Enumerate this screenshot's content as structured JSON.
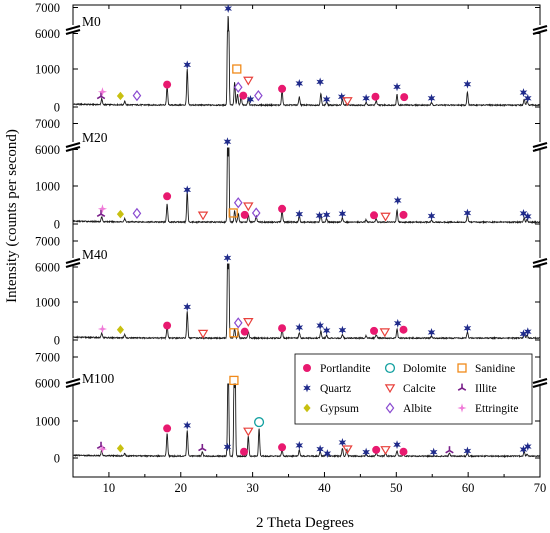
{
  "chart_data": {
    "type": "line",
    "xlabel": "2 Theta Degrees",
    "ylabel": "Intensity (counts per second)",
    "xlim": [
      5,
      70
    ],
    "x_ticks": [
      "10",
      "20",
      "30",
      "40",
      "50",
      "60",
      "70"
    ],
    "y_ticks": [
      "0",
      "1000",
      "6000",
      "7000"
    ],
    "axis_break": [
      2000,
      5500
    ],
    "panels": [
      {
        "label": "M0",
        "peaks": [
          [
            9.0,
            150
          ],
          [
            12.2,
            90
          ],
          [
            18.1,
            480
          ],
          [
            20.9,
            950
          ],
          [
            26.6,
            6800
          ],
          [
            27.5,
            600
          ],
          [
            27.9,
            300
          ],
          [
            28.4,
            250
          ],
          [
            29.4,
            180
          ],
          [
            34.1,
            380
          ],
          [
            36.5,
            220
          ],
          [
            39.5,
            300
          ],
          [
            40.3,
            100
          ],
          [
            42.5,
            150
          ],
          [
            45.8,
            80
          ],
          [
            47.2,
            120
          ],
          [
            50.1,
            280
          ],
          [
            54.9,
            60
          ],
          [
            59.9,
            350
          ],
          [
            67.8,
            150
          ],
          [
            68.2,
            100
          ]
        ],
        "markers": [
          {
            "mineral": "Illite",
            "x": 8.9,
            "y": 280
          },
          {
            "mineral": "Ettringite",
            "x": 9.1,
            "y": 400
          },
          {
            "mineral": "Gypsum",
            "x": 11.6,
            "y": 290
          },
          {
            "mineral": "Albite",
            "x": 13.9,
            "y": 300
          },
          {
            "mineral": "Portlandite",
            "x": 18.1,
            "y": 590
          },
          {
            "mineral": "Quartz",
            "x": 20.9,
            "y": 1110
          },
          {
            "mineral": "Quartz",
            "x": 26.6,
            "y": 6960
          },
          {
            "mineral": "Sanidine",
            "x": 27.8,
            "y": 1000
          },
          {
            "mineral": "Calcite",
            "x": 29.4,
            "y": 700
          },
          {
            "mineral": "Albite",
            "x": 28.0,
            "y": 520
          },
          {
            "mineral": "Portlandite",
            "x": 28.7,
            "y": 300
          },
          {
            "mineral": "Quartz",
            "x": 29.7,
            "y": 200
          },
          {
            "mineral": "Albite",
            "x": 30.8,
            "y": 300
          },
          {
            "mineral": "Portlandite",
            "x": 34.1,
            "y": 480
          },
          {
            "mineral": "Quartz",
            "x": 36.5,
            "y": 620
          },
          {
            "mineral": "Quartz",
            "x": 39.4,
            "y": 660
          },
          {
            "mineral": "Quartz",
            "x": 40.3,
            "y": 200
          },
          {
            "mineral": "Quartz",
            "x": 42.4,
            "y": 270
          },
          {
            "mineral": "Calcite",
            "x": 43.2,
            "y": 160
          },
          {
            "mineral": "Quartz",
            "x": 45.8,
            "y": 230
          },
          {
            "mineral": "Portlandite",
            "x": 47.1,
            "y": 270
          },
          {
            "mineral": "Quartz",
            "x": 50.1,
            "y": 530
          },
          {
            "mineral": "Portlandite",
            "x": 51.1,
            "y": 260
          },
          {
            "mineral": "Quartz",
            "x": 54.9,
            "y": 230
          },
          {
            "mineral": "Quartz",
            "x": 59.9,
            "y": 600
          },
          {
            "mineral": "Quartz",
            "x": 67.7,
            "y": 380
          },
          {
            "mineral": "Quartz",
            "x": 68.3,
            "y": 230
          }
        ]
      },
      {
        "label": "M20",
        "peaks": [
          [
            9.0,
            130
          ],
          [
            12.2,
            80
          ],
          [
            18.1,
            480
          ],
          [
            20.9,
            800
          ],
          [
            26.6,
            5900
          ],
          [
            27.5,
            300
          ],
          [
            28.0,
            230
          ],
          [
            29.4,
            200
          ],
          [
            30.5,
            150
          ],
          [
            34.1,
            320
          ],
          [
            36.5,
            180
          ],
          [
            39.5,
            200
          ],
          [
            40.3,
            100
          ],
          [
            42.5,
            120
          ],
          [
            45.8,
            60
          ],
          [
            47.2,
            100
          ],
          [
            50.1,
            330
          ],
          [
            54.9,
            50
          ],
          [
            59.9,
            180
          ],
          [
            67.8,
            120
          ],
          [
            68.2,
            80
          ]
        ],
        "markers": [
          {
            "mineral": "Illite",
            "x": 8.9,
            "y": 260
          },
          {
            "mineral": "Ettringite",
            "x": 9.1,
            "y": 400
          },
          {
            "mineral": "Gypsum",
            "x": 11.6,
            "y": 260
          },
          {
            "mineral": "Albite",
            "x": 13.9,
            "y": 280
          },
          {
            "mineral": "Portlandite",
            "x": 18.1,
            "y": 730
          },
          {
            "mineral": "Quartz",
            "x": 20.9,
            "y": 900
          },
          {
            "mineral": "Calcite",
            "x": 23.1,
            "y": 230
          },
          {
            "mineral": "Quartz",
            "x": 26.5,
            "y": 6300
          },
          {
            "mineral": "Sanidine",
            "x": 27.3,
            "y": 290
          },
          {
            "mineral": "Albite",
            "x": 28.0,
            "y": 560
          },
          {
            "mineral": "Calcite",
            "x": 29.4,
            "y": 470
          },
          {
            "mineral": "Portlandite",
            "x": 28.9,
            "y": 240
          },
          {
            "mineral": "Albite",
            "x": 30.5,
            "y": 290
          },
          {
            "mineral": "Portlandite",
            "x": 34.1,
            "y": 400
          },
          {
            "mineral": "Quartz",
            "x": 36.5,
            "y": 260
          },
          {
            "mineral": "Quartz",
            "x": 39.3,
            "y": 220
          },
          {
            "mineral": "Quartz",
            "x": 40.3,
            "y": 240
          },
          {
            "mineral": "Quartz",
            "x": 42.5,
            "y": 270
          },
          {
            "mineral": "Portlandite",
            "x": 46.9,
            "y": 230
          },
          {
            "mineral": "Calcite",
            "x": 48.5,
            "y": 200
          },
          {
            "mineral": "Quartz",
            "x": 50.2,
            "y": 620
          },
          {
            "mineral": "Portlandite",
            "x": 51.0,
            "y": 240
          },
          {
            "mineral": "Quartz",
            "x": 54.9,
            "y": 210
          },
          {
            "mineral": "Quartz",
            "x": 59.9,
            "y": 290
          },
          {
            "mineral": "Quartz",
            "x": 67.7,
            "y": 280
          },
          {
            "mineral": "Quartz",
            "x": 68.3,
            "y": 200
          }
        ]
      },
      {
        "label": "M40",
        "peaks": [
          [
            9.0,
            120
          ],
          [
            12.2,
            80
          ],
          [
            18.1,
            300
          ],
          [
            20.9,
            700
          ],
          [
            26.6,
            6100
          ],
          [
            27.5,
            250
          ],
          [
            28.0,
            180
          ],
          [
            29.4,
            180
          ],
          [
            34.1,
            250
          ],
          [
            36.5,
            150
          ],
          [
            39.5,
            180
          ],
          [
            40.3,
            80
          ],
          [
            42.5,
            100
          ],
          [
            45.8,
            60
          ],
          [
            47.2,
            90
          ],
          [
            50.1,
            250
          ],
          [
            54.9,
            50
          ],
          [
            59.9,
            170
          ],
          [
            67.8,
            120
          ],
          [
            68.2,
            80
          ]
        ],
        "markers": [
          {
            "mineral": "Ettringite",
            "x": 9.1,
            "y": 290
          },
          {
            "mineral": "Gypsum",
            "x": 11.6,
            "y": 270
          },
          {
            "mineral": "Portlandite",
            "x": 18.1,
            "y": 380
          },
          {
            "mineral": "Quartz",
            "x": 20.9,
            "y": 870
          },
          {
            "mineral": "Calcite",
            "x": 23.1,
            "y": 170
          },
          {
            "mineral": "Quartz",
            "x": 26.5,
            "y": 6350
          },
          {
            "mineral": "Sanidine",
            "x": 27.4,
            "y": 190
          },
          {
            "mineral": "Albite",
            "x": 28.0,
            "y": 450
          },
          {
            "mineral": "Calcite",
            "x": 29.4,
            "y": 480
          },
          {
            "mineral": "Portlandite",
            "x": 28.9,
            "y": 220
          },
          {
            "mineral": "Portlandite",
            "x": 34.1,
            "y": 310
          },
          {
            "mineral": "Quartz",
            "x": 36.5,
            "y": 330
          },
          {
            "mineral": "Quartz",
            "x": 39.4,
            "y": 380
          },
          {
            "mineral": "Quartz",
            "x": 40.3,
            "y": 250
          },
          {
            "mineral": "Quartz",
            "x": 42.5,
            "y": 260
          },
          {
            "mineral": "Portlandite",
            "x": 46.9,
            "y": 240
          },
          {
            "mineral": "Calcite",
            "x": 48.4,
            "y": 210
          },
          {
            "mineral": "Quartz",
            "x": 50.2,
            "y": 440
          },
          {
            "mineral": "Portlandite",
            "x": 51.0,
            "y": 270
          },
          {
            "mineral": "Quartz",
            "x": 54.9,
            "y": 200
          },
          {
            "mineral": "Quartz",
            "x": 59.9,
            "y": 310
          },
          {
            "mineral": "Quartz",
            "x": 67.7,
            "y": 160
          },
          {
            "mineral": "Quartz",
            "x": 68.3,
            "y": 220
          }
        ]
      },
      {
        "label": "M100",
        "peaks": [
          [
            9.0,
            160
          ],
          [
            12.2,
            70
          ],
          [
            18.1,
            620
          ],
          [
            20.9,
            700
          ],
          [
            23.0,
            120
          ],
          [
            26.6,
            2900
          ],
          [
            27.5,
            5800
          ],
          [
            29.4,
            550
          ],
          [
            30.9,
            750
          ],
          [
            34.1,
            180
          ],
          [
            36.5,
            170
          ],
          [
            39.4,
            150
          ],
          [
            40.3,
            80
          ],
          [
            42.5,
            220
          ],
          [
            43.1,
            180
          ],
          [
            45.8,
            60
          ],
          [
            47.2,
            90
          ],
          [
            48.5,
            100
          ],
          [
            50.1,
            150
          ],
          [
            51.0,
            80
          ],
          [
            57.4,
            80
          ],
          [
            59.9,
            100
          ],
          [
            67.8,
            120
          ],
          [
            68.2,
            60
          ]
        ],
        "markers": [
          {
            "mineral": "Illite",
            "x": 8.9,
            "y": 320
          },
          {
            "mineral": "Ettringite",
            "x": 9.1,
            "y": 240
          },
          {
            "mineral": "Gypsum",
            "x": 11.6,
            "y": 260
          },
          {
            "mineral": "Portlandite",
            "x": 18.1,
            "y": 800
          },
          {
            "mineral": "Quartz",
            "x": 20.9,
            "y": 880
          },
          {
            "mineral": "Illite",
            "x": 23.0,
            "y": 260
          },
          {
            "mineral": "Quartz",
            "x": 26.5,
            "y": 300
          },
          {
            "mineral": "Sanidine",
            "x": 27.4,
            "y": 6100
          },
          {
            "mineral": "Calcite",
            "x": 29.4,
            "y": 720
          },
          {
            "mineral": "Portlandite",
            "x": 28.8,
            "y": 170
          },
          {
            "mineral": "Dolomite",
            "x": 30.9,
            "y": 970
          },
          {
            "mineral": "Portlandite",
            "x": 34.1,
            "y": 290
          },
          {
            "mineral": "Quartz",
            "x": 36.5,
            "y": 340
          },
          {
            "mineral": "Quartz",
            "x": 39.4,
            "y": 240
          },
          {
            "mineral": "Quartz",
            "x": 40.4,
            "y": 120
          },
          {
            "mineral": "Quartz",
            "x": 42.5,
            "y": 420
          },
          {
            "mineral": "Calcite",
            "x": 43.2,
            "y": 240
          },
          {
            "mineral": "Quartz",
            "x": 45.8,
            "y": 160
          },
          {
            "mineral": "Portlandite",
            "x": 47.2,
            "y": 220
          },
          {
            "mineral": "Calcite",
            "x": 48.5,
            "y": 220
          },
          {
            "mineral": "Quartz",
            "x": 50.1,
            "y": 360
          },
          {
            "mineral": "Portlandite",
            "x": 51.0,
            "y": 170
          },
          {
            "mineral": "Quartz",
            "x": 55.2,
            "y": 160
          },
          {
            "mineral": "Illite",
            "x": 57.4,
            "y": 200
          },
          {
            "mineral": "Quartz",
            "x": 59.9,
            "y": 190
          },
          {
            "mineral": "Quartz",
            "x": 67.7,
            "y": 230
          },
          {
            "mineral": "Quartz",
            "x": 68.3,
            "y": 310
          }
        ]
      }
    ],
    "legend": {
      "position": "right",
      "entries": [
        {
          "name": "Portlandite",
          "marker": "circle-filled",
          "color": "#e8196f"
        },
        {
          "name": "Dolomite",
          "marker": "circle-open",
          "color": "#12a0a0"
        },
        {
          "name": "Sanidine",
          "marker": "square-open",
          "color": "#f08a1a"
        },
        {
          "name": "Quartz",
          "marker": "star",
          "color": "#1f2a8a"
        },
        {
          "name": "Calcite",
          "marker": "triangle-down-open",
          "color": "#e8413c"
        },
        {
          "name": "Illite",
          "marker": "tri-star",
          "color": "#7a1f8a"
        },
        {
          "name": "Gypsum",
          "marker": "diamond-filled",
          "color": "#c8c010"
        },
        {
          "name": "Albite",
          "marker": "diamond-open",
          "color": "#8a4ad0"
        },
        {
          "name": "Ettringite",
          "marker": "sparkle",
          "color": "#f07ad8"
        }
      ]
    },
    "colors": {
      "trace": "#1a1a1a",
      "axis": "#000000"
    }
  }
}
